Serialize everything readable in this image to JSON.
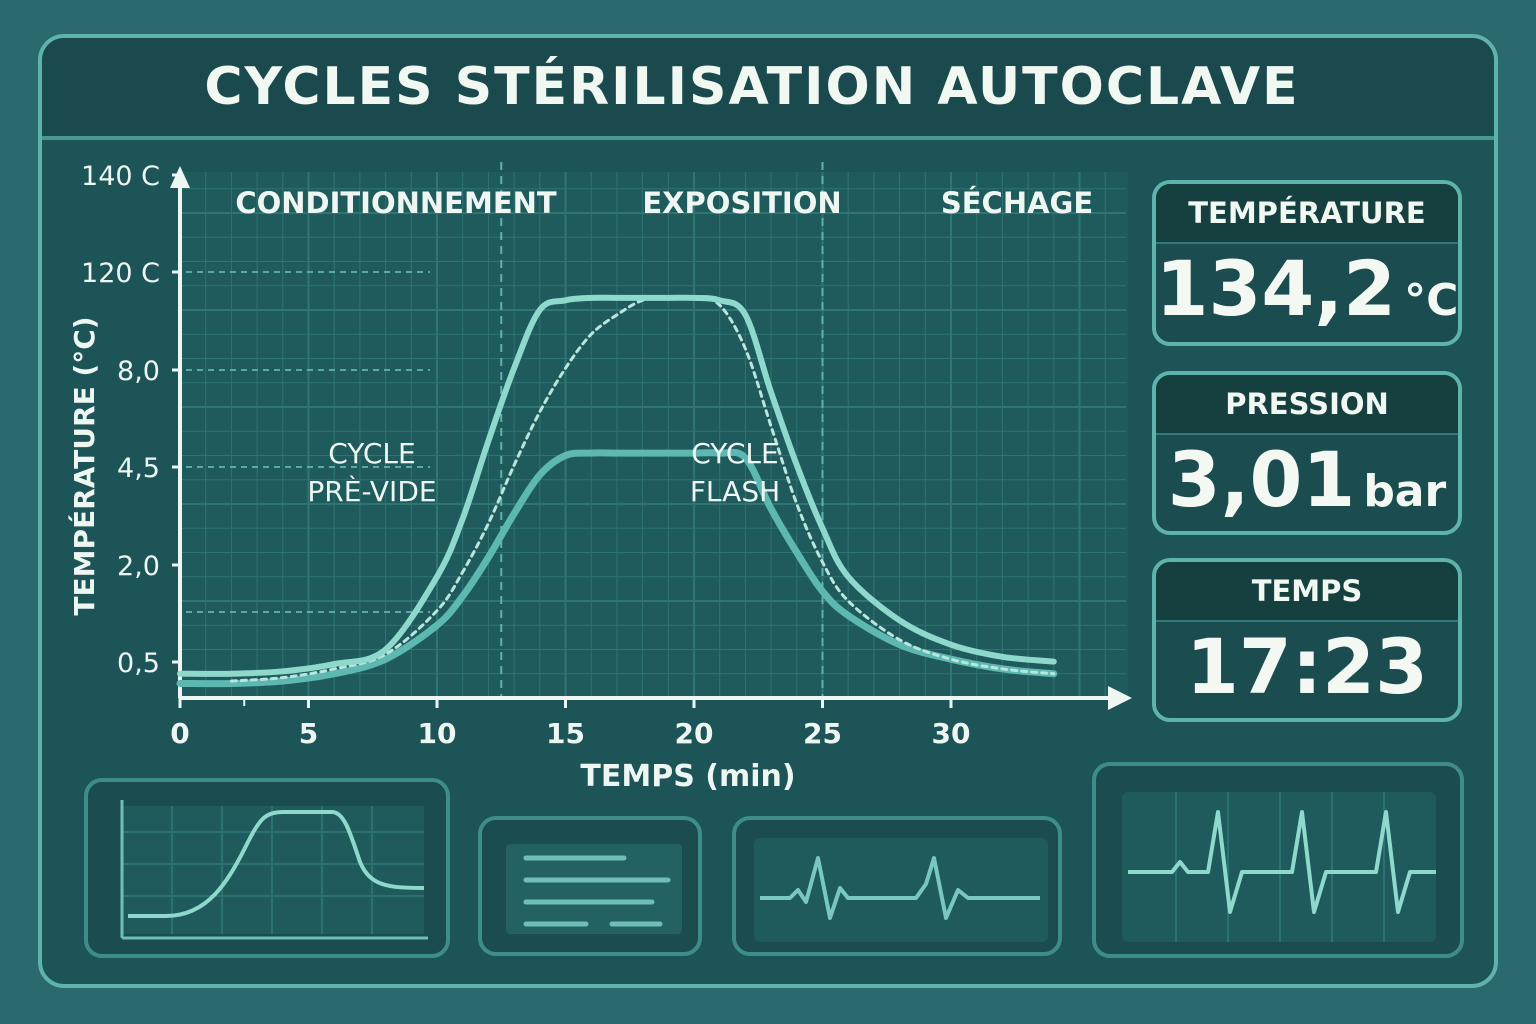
{
  "header": {
    "title": "CYCLES STÉRILISATION AUTOCLAVE"
  },
  "chart_data": {
    "type": "line",
    "x": [
      0,
      2,
      4,
      6,
      8,
      10,
      11,
      12,
      13,
      14,
      15,
      16,
      17,
      18,
      19,
      20,
      21,
      22,
      23,
      24,
      25,
      26,
      28,
      30,
      32,
      34
    ],
    "series": [
      {
        "style": "solid-light",
        "values": [
          0.5,
          0.5,
          0.55,
          0.7,
          1.0,
          2.5,
          3.7,
          5.3,
          6.8,
          8.0,
          8.2,
          8.25,
          8.25,
          8.25,
          8.25,
          8.25,
          8.2,
          7.9,
          6.3,
          4.8,
          3.5,
          2.5,
          1.6,
          1.1,
          0.85,
          0.75
        ]
      },
      {
        "style": "dashed",
        "values": [
          null,
          0.35,
          0.42,
          0.6,
          0.9,
          1.8,
          2.6,
          3.6,
          4.8,
          5.9,
          6.8,
          7.5,
          7.9,
          8.2,
          8.25,
          8.25,
          8.1,
          7.2,
          5.6,
          4.0,
          2.8,
          2.0,
          1.2,
          0.8,
          0.6,
          0.5
        ]
      },
      {
        "style": "solid-dark",
        "values": [
          0.3,
          0.3,
          0.35,
          0.5,
          0.8,
          1.5,
          2.1,
          2.9,
          3.8,
          4.6,
          5.0,
          5.05,
          5.05,
          5.05,
          5.05,
          5.05,
          5.05,
          4.95,
          3.9,
          3.0,
          2.2,
          1.7,
          1.1,
          0.8,
          0.6,
          0.5
        ]
      }
    ],
    "xlabel": "TEMPS (min)",
    "ylabel": "TEMPÉRATURE (°C)",
    "x_ticks": [
      "0",
      "5",
      "10",
      "15",
      "20",
      "25",
      "30"
    ],
    "y_ticks": [
      "0,5",
      "2,0",
      "4,5",
      "8,0",
      "120 C",
      "140 C"
    ],
    "phases": [
      "CONDITIONNEMENT",
      "EXPOSITION",
      "SÉCHAGE"
    ],
    "phase_boundaries": [
      12.5,
      25
    ],
    "annotations": [
      {
        "lines": [
          "CYCLE",
          "PRÈ-VIDE"
        ]
      },
      {
        "lines": [
          "CYCLE",
          "FLASH"
        ]
      }
    ],
    "grid": true,
    "colors": {
      "light": "#8fd8cc",
      "dark": "#5cb8b0",
      "dashed": "#b8e6dc"
    }
  },
  "readouts": {
    "temperature": {
      "label": "TEMPÉRATURE",
      "value": "134,2",
      "unit": "°C"
    },
    "pressure": {
      "label": "PRESSION",
      "value": "3,01",
      "unit": "bar"
    },
    "time": {
      "label": "TEMPS",
      "value": "17:23"
    }
  },
  "thumbnails": [
    "mini-curve-icon",
    "text-lines-icon",
    "pulse-wave-icon",
    "ecg-wave-icon"
  ],
  "colors": {
    "background": "#2a6a6e",
    "panel": "#1d5458",
    "accent": "#5fb3ad",
    "text": "#eef6f2"
  }
}
